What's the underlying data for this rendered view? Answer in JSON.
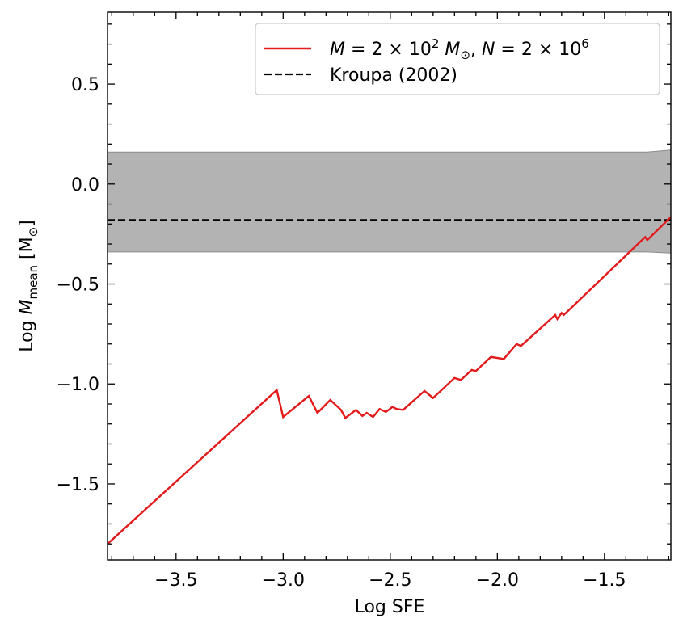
{
  "chart_data": {
    "type": "line",
    "xlabel": "Log SFE",
    "ylabel": "Log M_mean [M_sun]",
    "xlim": [
      -3.82,
      -1.19
    ],
    "ylim": [
      -1.88,
      0.86
    ],
    "xticks": [
      -3.5,
      -3.0,
      -2.5,
      -2.0,
      -1.5
    ],
    "xtick_labels": [
      "−3.5",
      "−3.0",
      "−2.5",
      "−2.0",
      "−1.5"
    ],
    "yticks": [
      -1.5,
      -1.0,
      -0.5,
      0.0,
      0.5
    ],
    "ytick_labels": [
      "−1.5",
      "−1.0",
      "−0.5",
      "0.0",
      "0.5"
    ],
    "grid": false,
    "legend_position": "top-right",
    "band": {
      "x": [
        -3.82,
        -1.3,
        -1.19
      ],
      "upper": [
        0.16,
        0.16,
        0.17
      ],
      "lower": [
        -0.34,
        -0.34,
        -0.345
      ],
      "color": "#b3b3b3"
    },
    "series": [
      {
        "name": "M = 2×10² M⊙, N = 2×10⁶",
        "color": "#e31a1c",
        "style": "solid",
        "x": [
          -3.82,
          -3.03,
          -3.0,
          -2.88,
          -2.84,
          -2.78,
          -2.73,
          -2.71,
          -2.66,
          -2.63,
          -2.61,
          -2.58,
          -2.55,
          -2.52,
          -2.49,
          -2.47,
          -2.44,
          -2.34,
          -2.3,
          -2.2,
          -2.17,
          -2.12,
          -2.1,
          -2.03,
          -1.97,
          -1.91,
          -1.89,
          -1.73,
          -1.72,
          -1.7,
          -1.69,
          -1.31,
          -1.3,
          -1.19
        ],
        "y": [
          -1.8,
          -1.03,
          -1.165,
          -1.06,
          -1.145,
          -1.08,
          -1.13,
          -1.17,
          -1.13,
          -1.16,
          -1.145,
          -1.165,
          -1.125,
          -1.14,
          -1.115,
          -1.125,
          -1.13,
          -1.035,
          -1.07,
          -0.97,
          -0.98,
          -0.93,
          -0.935,
          -0.865,
          -0.875,
          -0.8,
          -0.81,
          -0.655,
          -0.675,
          -0.645,
          -0.655,
          -0.265,
          -0.28,
          -0.165
        ]
      },
      {
        "name": "Kroupa (2002)",
        "color": "#000000",
        "style": "dashed",
        "x": [
          -3.82,
          -1.19
        ],
        "y": [
          -0.18,
          -0.18
        ]
      }
    ]
  }
}
